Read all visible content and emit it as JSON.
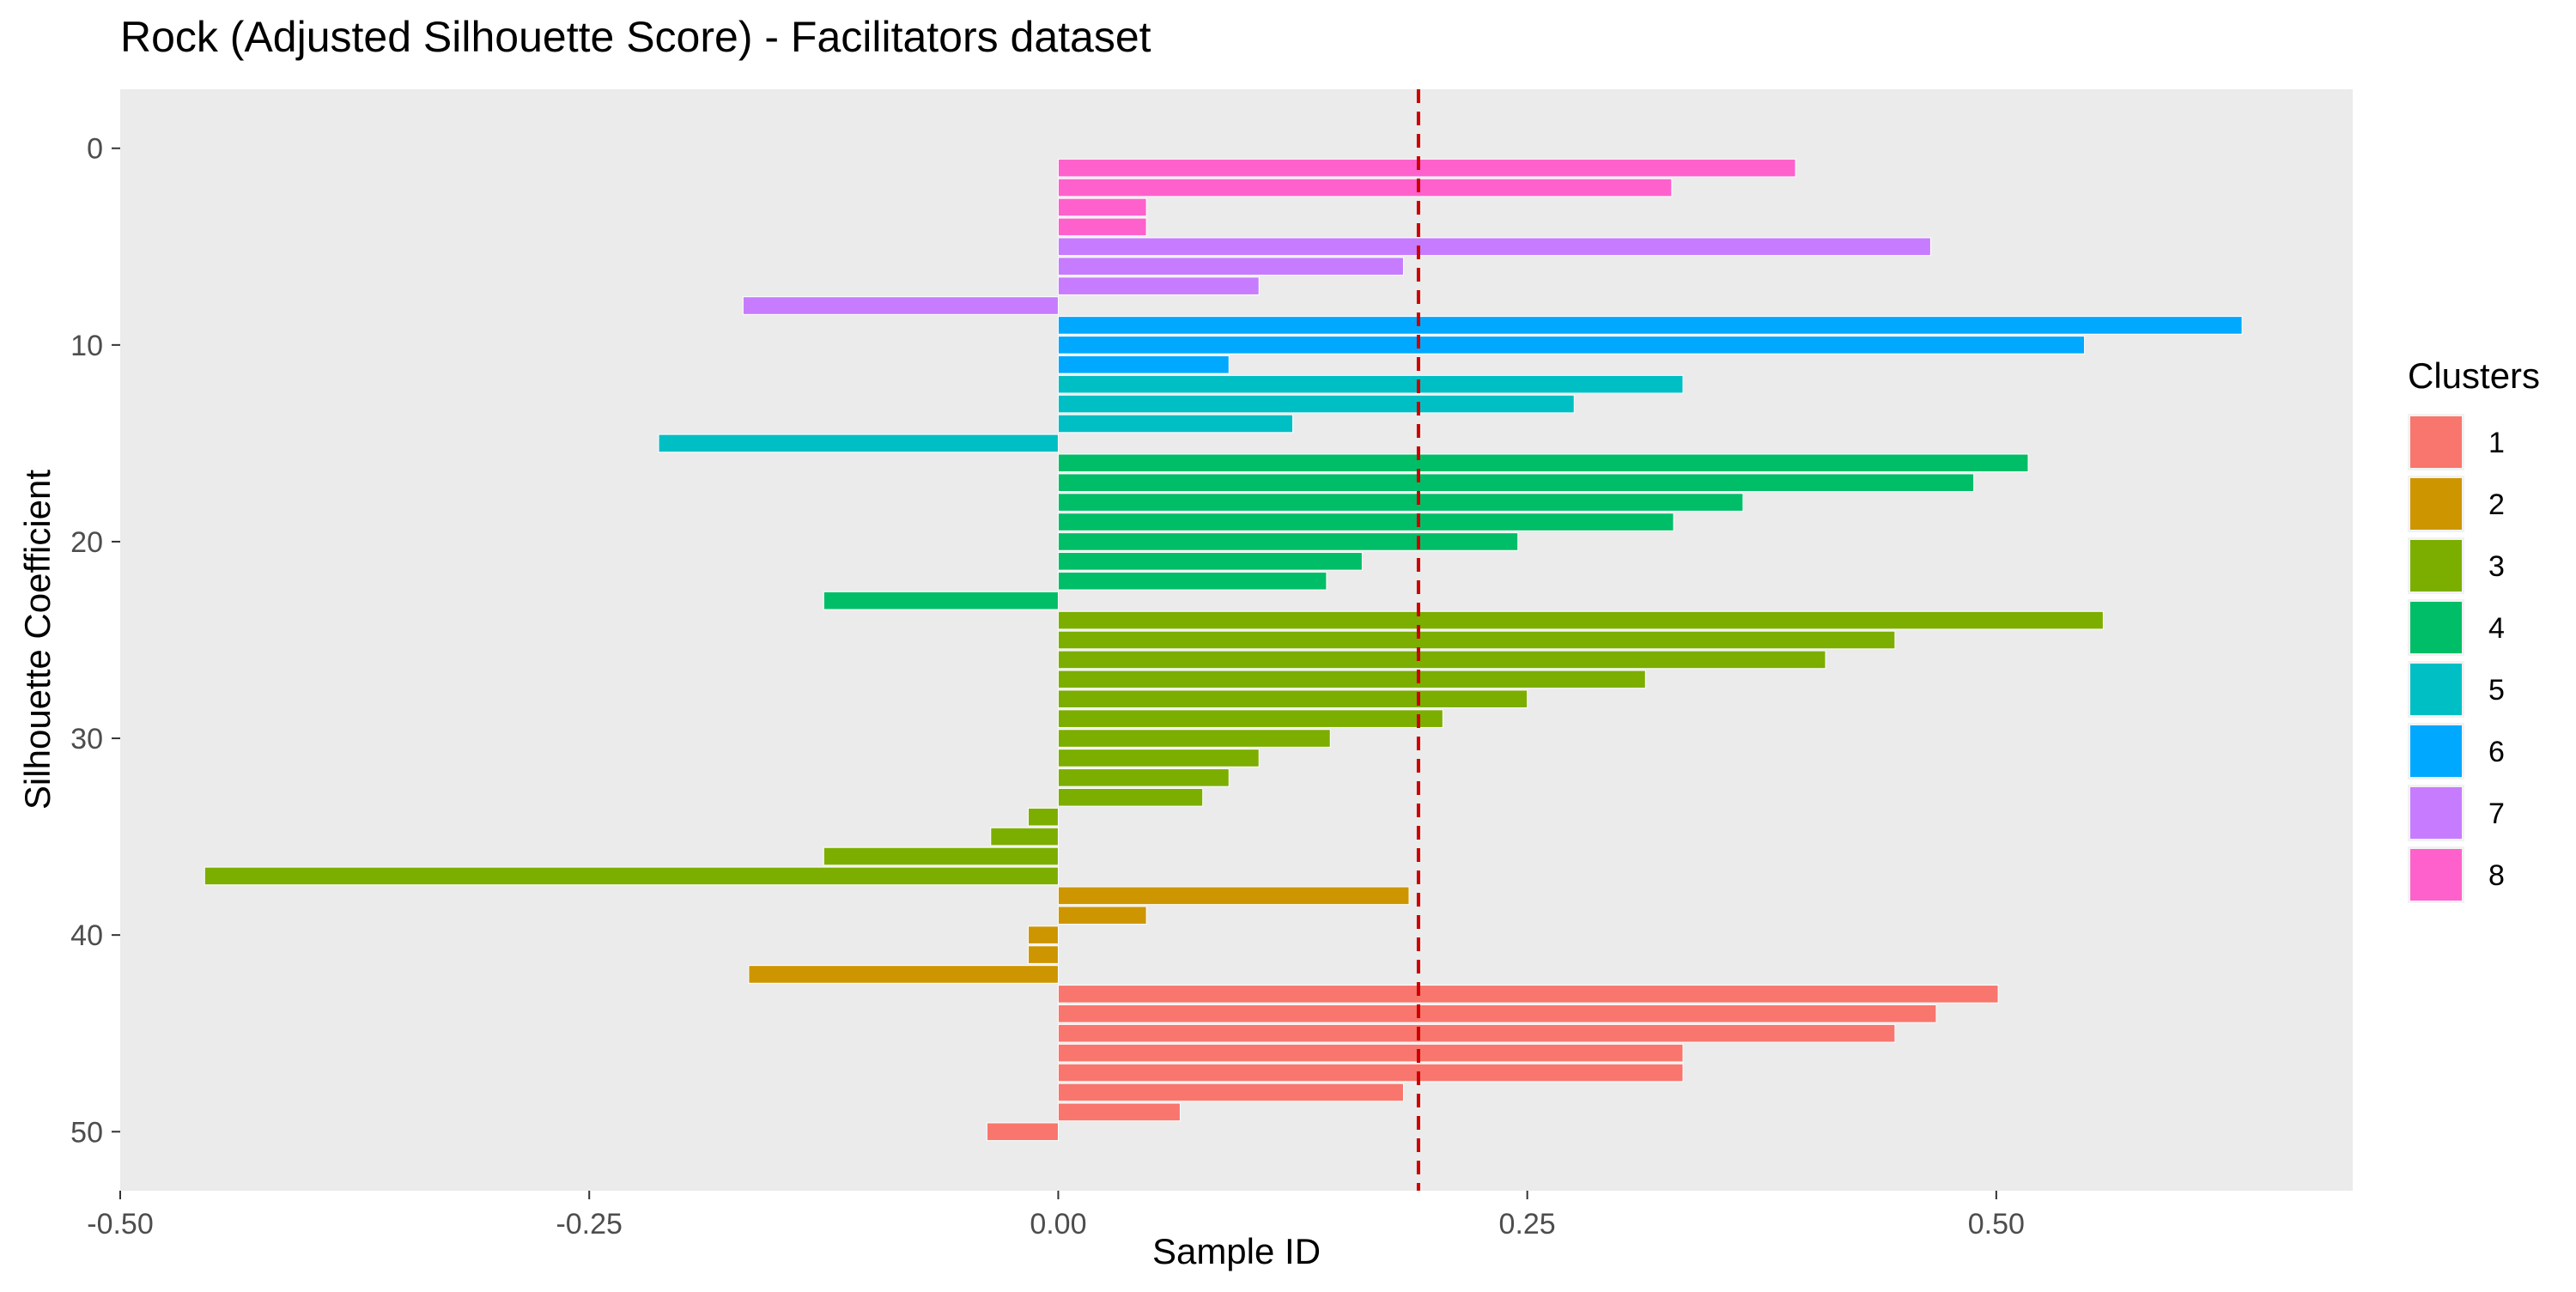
{
  "chart_data": {
    "type": "bar",
    "orientation": "horizontal",
    "title": "Rock (Adjusted Silhouette Score) - Facilitators dataset",
    "xlabel": "Sample ID",
    "ylabel": "Silhouette Coefficient",
    "xlim": [
      -0.5,
      0.69
    ],
    "ylim": [
      53,
      -3
    ],
    "y_reversed": true,
    "grid": false,
    "background": "#EBEBEB",
    "x_ticks": [
      {
        "value": -0.5,
        "label": "-0.50"
      },
      {
        "value": -0.25,
        "label": "-0.25"
      },
      {
        "value": 0.0,
        "label": "0.00"
      },
      {
        "value": 0.25,
        "label": "0.25"
      },
      {
        "value": 0.5,
        "label": "0.50"
      }
    ],
    "y_ticks": [
      {
        "value": 0,
        "label": "0"
      },
      {
        "value": 10,
        "label": "10"
      },
      {
        "value": 20,
        "label": "20"
      },
      {
        "value": 30,
        "label": "30"
      },
      {
        "value": 40,
        "label": "40"
      },
      {
        "value": 50,
        "label": "50"
      }
    ],
    "reference_line": {
      "value": 0.192,
      "color": "#CC0000",
      "style": "dashed"
    },
    "legend": {
      "title": "Clusters",
      "placement": "right",
      "items": [
        {
          "label": "1",
          "color": "#F8766D"
        },
        {
          "label": "2",
          "color": "#CD9600"
        },
        {
          "label": "3",
          "color": "#7CAE00"
        },
        {
          "label": "4",
          "color": "#00BE67"
        },
        {
          "label": "5",
          "color": "#00BFC4"
        },
        {
          "label": "6",
          "color": "#00A9FF"
        },
        {
          "label": "7",
          "color": "#C77CFF"
        },
        {
          "label": "8",
          "color": "#FF61CC"
        }
      ]
    },
    "bars": [
      {
        "id": 1,
        "value": 0.393,
        "cluster": "8"
      },
      {
        "id": 2,
        "value": 0.327,
        "cluster": "8"
      },
      {
        "id": 3,
        "value": 0.047,
        "cluster": "8"
      },
      {
        "id": 4,
        "value": 0.047,
        "cluster": "8"
      },
      {
        "id": 5,
        "value": 0.465,
        "cluster": "7"
      },
      {
        "id": 6,
        "value": 0.184,
        "cluster": "7"
      },
      {
        "id": 7,
        "value": 0.107,
        "cluster": "7"
      },
      {
        "id": 8,
        "value": -0.168,
        "cluster": "7"
      },
      {
        "id": 9,
        "value": 0.631,
        "cluster": "6"
      },
      {
        "id": 10,
        "value": 0.547,
        "cluster": "6"
      },
      {
        "id": 11,
        "value": 0.091,
        "cluster": "6"
      },
      {
        "id": 12,
        "value": 0.333,
        "cluster": "5"
      },
      {
        "id": 13,
        "value": 0.275,
        "cluster": "5"
      },
      {
        "id": 14,
        "value": 0.125,
        "cluster": "5"
      },
      {
        "id": 15,
        "value": -0.213,
        "cluster": "5"
      },
      {
        "id": 16,
        "value": 0.517,
        "cluster": "4"
      },
      {
        "id": 17,
        "value": 0.488,
        "cluster": "4"
      },
      {
        "id": 18,
        "value": 0.365,
        "cluster": "4"
      },
      {
        "id": 19,
        "value": 0.328,
        "cluster": "4"
      },
      {
        "id": 20,
        "value": 0.245,
        "cluster": "4"
      },
      {
        "id": 21,
        "value": 0.162,
        "cluster": "4"
      },
      {
        "id": 22,
        "value": 0.143,
        "cluster": "4"
      },
      {
        "id": 23,
        "value": -0.125,
        "cluster": "4"
      },
      {
        "id": 24,
        "value": 0.557,
        "cluster": "3"
      },
      {
        "id": 25,
        "value": 0.446,
        "cluster": "3"
      },
      {
        "id": 26,
        "value": 0.409,
        "cluster": "3"
      },
      {
        "id": 27,
        "value": 0.313,
        "cluster": "3"
      },
      {
        "id": 28,
        "value": 0.25,
        "cluster": "3"
      },
      {
        "id": 29,
        "value": 0.205,
        "cluster": "3"
      },
      {
        "id": 30,
        "value": 0.145,
        "cluster": "3"
      },
      {
        "id": 31,
        "value": 0.107,
        "cluster": "3"
      },
      {
        "id": 32,
        "value": 0.091,
        "cluster": "3"
      },
      {
        "id": 33,
        "value": 0.077,
        "cluster": "3"
      },
      {
        "id": 34,
        "value": -0.016,
        "cluster": "3"
      },
      {
        "id": 35,
        "value": -0.036,
        "cluster": "3"
      },
      {
        "id": 36,
        "value": -0.125,
        "cluster": "3"
      },
      {
        "id": 37,
        "value": -0.455,
        "cluster": "3"
      },
      {
        "id": 38,
        "value": 0.187,
        "cluster": "2"
      },
      {
        "id": 39,
        "value": 0.047,
        "cluster": "2"
      },
      {
        "id": 40,
        "value": -0.016,
        "cluster": "2"
      },
      {
        "id": 41,
        "value": -0.016,
        "cluster": "2"
      },
      {
        "id": 42,
        "value": -0.165,
        "cluster": "2"
      },
      {
        "id": 43,
        "value": 0.501,
        "cluster": "1"
      },
      {
        "id": 44,
        "value": 0.468,
        "cluster": "1"
      },
      {
        "id": 45,
        "value": 0.446,
        "cluster": "1"
      },
      {
        "id": 46,
        "value": 0.333,
        "cluster": "1"
      },
      {
        "id": 47,
        "value": 0.333,
        "cluster": "1"
      },
      {
        "id": 48,
        "value": 0.184,
        "cluster": "1"
      },
      {
        "id": 49,
        "value": 0.065,
        "cluster": "1"
      },
      {
        "id": 50,
        "value": -0.038,
        "cluster": "1"
      }
    ]
  }
}
